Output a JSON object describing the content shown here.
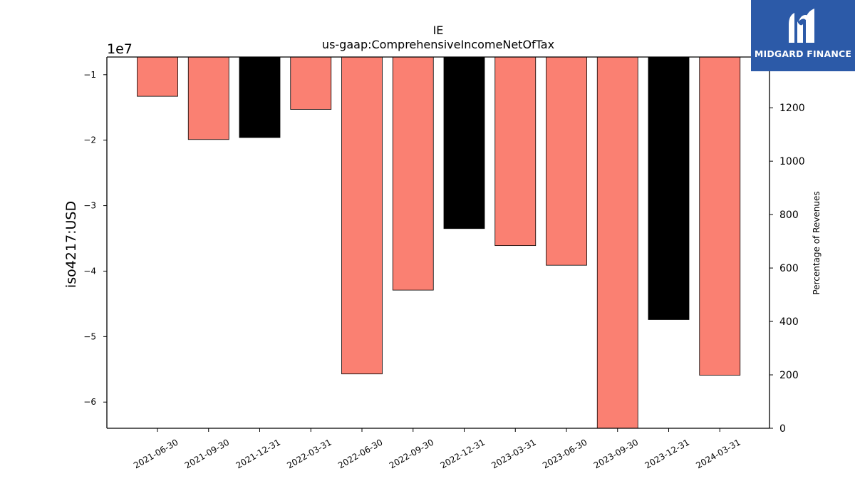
{
  "chart_data": {
    "type": "bar",
    "title_line1": "IE",
    "title_line2": "us-gaap:ComprehensiveIncomeNetOfTax",
    "ylabel": "iso4217:USD",
    "y_offset_label": "1e7",
    "y2label": "Percentage of Revenues",
    "categories": [
      "2021-06-30",
      "2021-09-30",
      "2021-12-31",
      "2022-03-31",
      "2022-06-30",
      "2022-09-30",
      "2022-12-31",
      "2023-03-31",
      "2023-06-30",
      "2023-09-30",
      "2023-12-31",
      "2024-03-31"
    ],
    "values": [
      -13300000,
      -19900000,
      -19600000,
      -15300000,
      -55700000,
      -42900000,
      -33500000,
      -36100000,
      -39100000,
      -64500000,
      -47400000,
      -55900000
    ],
    "bar_colors": [
      "#fa8072",
      "#fa8072",
      "#000000",
      "#fa8072",
      "#fa8072",
      "#fa8072",
      "#000000",
      "#fa8072",
      "#fa8072",
      "#fa8072",
      "#000000",
      "#fa8072"
    ],
    "ylim": [
      -64000000,
      -7300000
    ],
    "yticks": [
      -10000000,
      -20000000,
      -30000000,
      -40000000,
      -50000000,
      -60000000
    ],
    "ytick_labels": [
      "−1",
      "−2",
      "−3",
      "−4",
      "−5",
      "−6"
    ],
    "y2lim": [
      0,
      1390
    ],
    "y2ticks": [
      0,
      200,
      400,
      600,
      800,
      1000,
      1200
    ],
    "y2tick_labels": [
      "0",
      "200",
      "400",
      "600",
      "800",
      "1000",
      "1200"
    ],
    "grid": false
  },
  "logo": {
    "text": "MIDGARD FINANCE",
    "bg_color": "#2c5aa8"
  }
}
